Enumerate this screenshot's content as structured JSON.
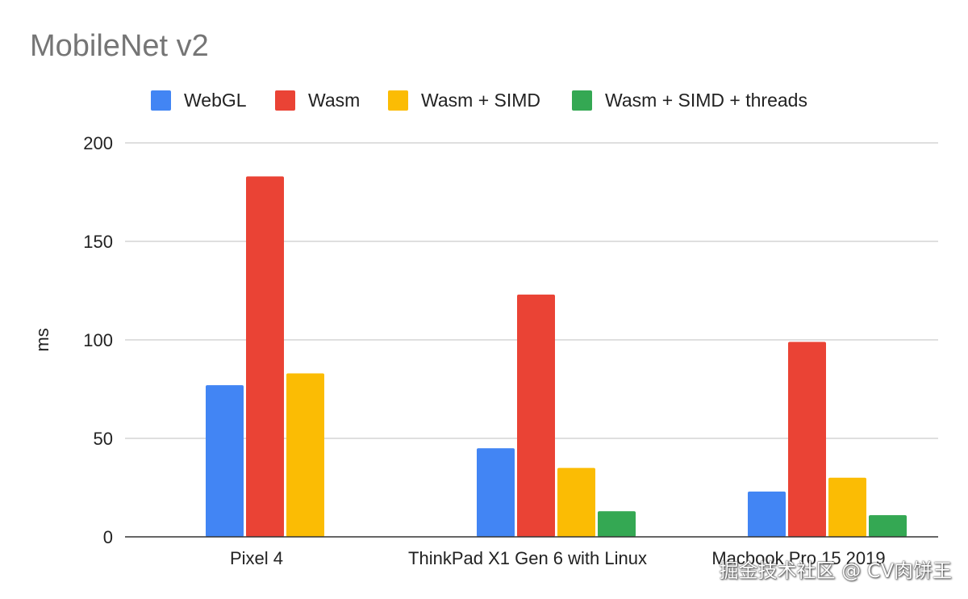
{
  "chart_data": {
    "type": "bar",
    "title": "MobileNet v2",
    "ylabel": "ms",
    "xlabel": "",
    "categories": [
      "Pixel 4",
      "ThinkPad X1 Gen 6 with Linux",
      "Macbook Pro 15 2019"
    ],
    "series": [
      {
        "name": "WebGL",
        "color": "#4285F4",
        "values": [
          77,
          45,
          23
        ]
      },
      {
        "name": "Wasm",
        "color": "#EA4335",
        "values": [
          183,
          123,
          99
        ]
      },
      {
        "name": "Wasm + SIMD",
        "color": "#FBBC04",
        "values": [
          83,
          35,
          30
        ]
      },
      {
        "name": "Wasm + SIMD + threads",
        "color": "#34A853",
        "values": [
          null,
          13,
          11
        ]
      }
    ],
    "ylim": [
      0,
      200
    ],
    "yticks": [
      0,
      50,
      100,
      150,
      200
    ],
    "grid": true,
    "legend_position": "top"
  },
  "watermark": "掘金技术社区 @ CV肉饼王"
}
